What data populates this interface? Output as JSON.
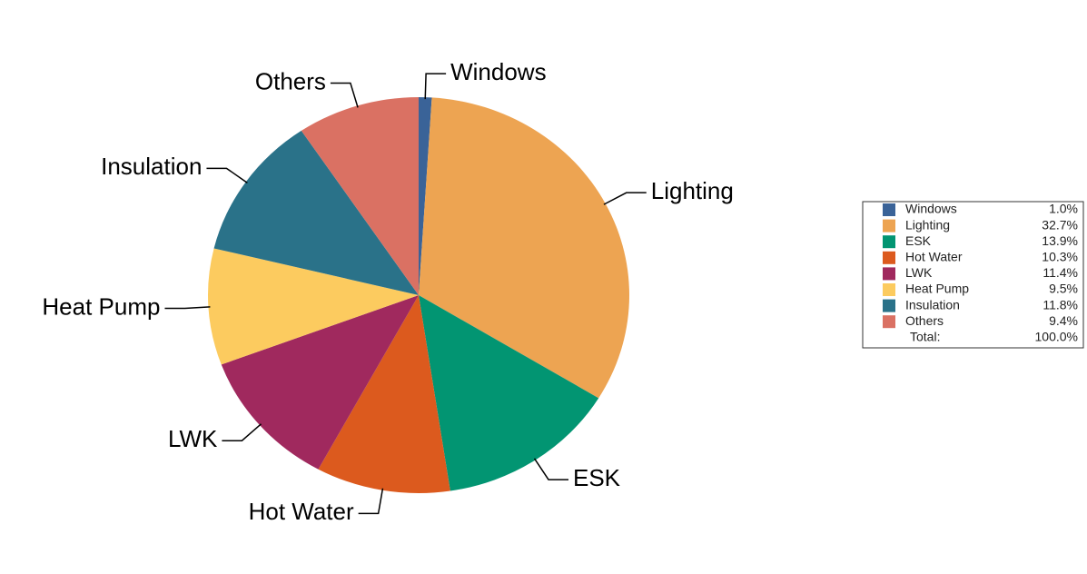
{
  "chart_data": {
    "type": "pie",
    "categories": [
      "Windows",
      "Lighting",
      "ESK",
      "Hot Water",
      "LWK",
      "Heat Pump",
      "Insulation",
      "Others"
    ],
    "values": [
      1.0,
      32.7,
      13.9,
      10.3,
      11.4,
      9.5,
      11.8,
      9.4
    ],
    "value_labels": [
      "1.0%",
      "32.7%",
      "13.9%",
      "10.3%",
      "11.4%",
      "9.5%",
      "11.8%",
      "9.4%"
    ],
    "colors": [
      "#3a6398",
      "#eda452",
      "#029572",
      "#dc5a1e",
      "#a0295e",
      "#fccb5f",
      "#2a7289",
      "#da7163"
    ],
    "legend_total": {
      "label": "Total:",
      "value_label": "100.0%"
    }
  }
}
